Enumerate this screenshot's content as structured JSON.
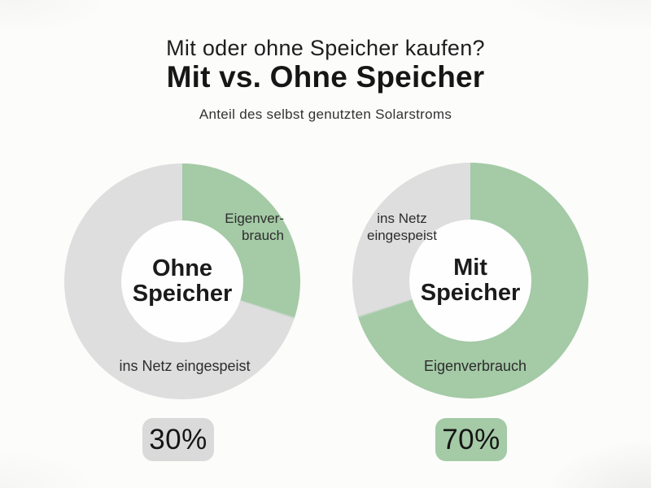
{
  "header": {
    "kicker": "Mit oder ohne Speicher kaufen?",
    "title": "Mit vs. Ohne Speicher",
    "subtitle": "Anteil des selbst genutzten Solarstroms"
  },
  "colors": {
    "green": "#a4caa6",
    "gray": "#dedede",
    "badge_gray": "#dadada",
    "text_dark": "#1d1d1d"
  },
  "chart_data": [
    {
      "type": "pie",
      "subtype": "donut",
      "title": "Ohne Speicher",
      "center_label": "Ohne\nSpeicher",
      "start_angle_deg": 0,
      "direction": "clockwise",
      "slices": [
        {
          "label": "Eigenverbrauch",
          "value": 30,
          "color": "#a4caa6",
          "ring_label": "Eigenver-\nbrauch"
        },
        {
          "label": "ins Netz eingespeist",
          "value": 70,
          "color": "#dedede",
          "ring_label": "ins Netz eingespeist"
        }
      ],
      "badge": {
        "text": "30%",
        "bg": "#dadada"
      }
    },
    {
      "type": "pie",
      "subtype": "donut",
      "title": "Mit Speicher",
      "center_label": "Mit\nSpeicher",
      "start_angle_deg": 0,
      "direction": "clockwise",
      "slices": [
        {
          "label": "Eigenverbrauch",
          "value": 70,
          "color": "#a4caa6",
          "ring_label": "Eigenverbrauch"
        },
        {
          "label": "ins Netz eingespeist",
          "value": 30,
          "color": "#dedede",
          "ring_label": "ins Netz\neingespeist"
        }
      ],
      "badge": {
        "text": "70%",
        "bg": "#a4caa6"
      }
    }
  ]
}
